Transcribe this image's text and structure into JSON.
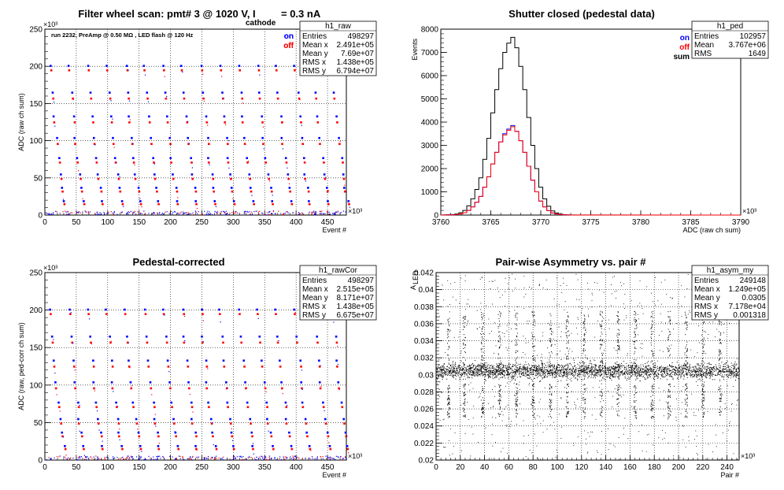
{
  "chart_data": [
    {
      "id": "raw",
      "type": "scatter",
      "title": "Filter wheel scan: pmt#  3 @  1020 V, I",
      "title_sub": "cathode",
      "title_tail": " = 0.3 nA",
      "xlabel": "Event #",
      "ylabel": "ADC (raw ch sum)",
      "x_exponent": "×10³",
      "y_exponent": "×10³",
      "xlim": [
        0,
        480
      ],
      "ylim": [
        0,
        250
      ],
      "xticks": [
        "0",
        "50",
        "100",
        "150",
        "200",
        "250",
        "300",
        "350",
        "400",
        "450"
      ],
      "yticks": [
        "0",
        "50",
        "100",
        "150",
        "200",
        "250"
      ],
      "annotation": "run 2232, PreAmp @ 0.50 MΩ , LED flash @  120 Hz",
      "legend": [
        {
          "label": "on",
          "color": "#0000ff"
        },
        {
          "label": "off",
          "color": "#ff0000"
        }
      ],
      "levels_on": [
        202,
        166,
        134,
        105,
        78,
        56,
        38,
        20
      ],
      "levels_off": [
        196,
        158,
        126,
        97,
        72,
        50,
        33,
        16
      ],
      "stats": {
        "name": "h1_raw",
        "rows": [
          {
            "k": "Entries",
            "v": "498297"
          },
          {
            "k": "Mean x",
            "v": "2.491e+05"
          },
          {
            "k": "Mean y",
            "v": "7.69e+07"
          },
          {
            "k": "RMS x",
            "v": "1.438e+05"
          },
          {
            "k": "RMS y",
            "v": "6.794e+07"
          }
        ]
      }
    },
    {
      "id": "ped",
      "type": "line",
      "title": "Shutter closed (pedestal data)",
      "xlabel": "ADC (raw ch sum)",
      "ylabel": "Events",
      "x_exponent": "×10³",
      "xlim": [
        3760,
        3790
      ],
      "ylim": [
        0,
        8000
      ],
      "xticks": [
        "3760",
        "3765",
        "3770",
        "3775",
        "3780",
        "3785",
        "3790"
      ],
      "yticks": [
        "0",
        "1000",
        "2000",
        "3000",
        "4000",
        "5000",
        "6000",
        "7000",
        "8000"
      ],
      "legend": [
        {
          "label": "on",
          "color": "#0000ff"
        },
        {
          "label": "off",
          "color": "#ff0000"
        },
        {
          "label": "sum",
          "color": "#000000"
        }
      ],
      "bin_width": 0.4,
      "series": [
        {
          "name": "sum",
          "color": "#000000",
          "x": [
            3761.2,
            3761.6,
            3762.0,
            3762.4,
            3762.8,
            3763.2,
            3763.6,
            3764.0,
            3764.4,
            3764.8,
            3765.2,
            3765.6,
            3766.0,
            3766.4,
            3766.8,
            3767.2,
            3767.6,
            3768.0,
            3768.4,
            3768.8,
            3769.2,
            3769.6,
            3770.0,
            3770.4,
            3770.8,
            3771.2,
            3771.6,
            3772.0,
            3772.4,
            3772.8,
            3773.2
          ],
          "values": [
            20,
            45,
            100,
            200,
            400,
            700,
            1100,
            1600,
            2400,
            3300,
            4400,
            5400,
            6300,
            7000,
            7400,
            7650,
            7200,
            6400,
            5400,
            4200,
            3000,
            2000,
            1200,
            700,
            380,
            180,
            90,
            40,
            15,
            8,
            3
          ]
        },
        {
          "name": "on",
          "color": "#0000ff",
          "x": [
            3761.2,
            3761.6,
            3762.0,
            3762.4,
            3762.8,
            3763.2,
            3763.6,
            3764.0,
            3764.4,
            3764.8,
            3765.2,
            3765.6,
            3766.0,
            3766.4,
            3766.8,
            3767.2,
            3767.6,
            3768.0,
            3768.4,
            3768.8,
            3769.2,
            3769.6,
            3770.0,
            3770.4,
            3770.8,
            3771.2,
            3771.6,
            3772.0,
            3772.4,
            3772.8,
            3773.2
          ],
          "values": [
            10,
            22,
            50,
            100,
            200,
            350,
            550,
            800,
            1200,
            1650,
            2200,
            2700,
            3150,
            3500,
            3700,
            3850,
            3600,
            3200,
            2700,
            2100,
            1500,
            1000,
            600,
            350,
            190,
            90,
            45,
            20,
            8,
            4,
            1
          ]
        },
        {
          "name": "off",
          "color": "#ff0000",
          "x": [
            3761.2,
            3761.6,
            3762.0,
            3762.4,
            3762.8,
            3763.2,
            3763.6,
            3764.0,
            3764.4,
            3764.8,
            3765.2,
            3765.6,
            3766.0,
            3766.4,
            3766.8,
            3767.2,
            3767.6,
            3768.0,
            3768.4,
            3768.8,
            3769.2,
            3769.6,
            3770.0,
            3770.4,
            3770.8,
            3771.2,
            3771.6,
            3772.0,
            3772.4,
            3772.8,
            3773.2
          ],
          "values": [
            10,
            23,
            50,
            100,
            200,
            350,
            550,
            800,
            1200,
            1650,
            2200,
            2700,
            3150,
            3450,
            3650,
            3800,
            3600,
            3200,
            2700,
            2100,
            1500,
            1000,
            600,
            350,
            190,
            90,
            45,
            20,
            7,
            4,
            2
          ]
        }
      ],
      "stats": {
        "name": "h1_ped",
        "rows": [
          {
            "k": "Entries",
            "v": "102957"
          },
          {
            "k": "Mean",
            "v": "3.767e+06"
          },
          {
            "k": "RMS",
            "v": "1649"
          }
        ]
      }
    },
    {
      "id": "cor",
      "type": "scatter",
      "title": "Pedestal-corrected",
      "xlabel": "Event #",
      "ylabel": "ADC (raw, ped-corr ch sum)",
      "x_exponent": "×10³",
      "y_exponent": "×10³",
      "xlim": [
        0,
        480
      ],
      "ylim": [
        0,
        250
      ],
      "xticks": [
        "0",
        "50",
        "100",
        "150",
        "200",
        "250",
        "300",
        "350",
        "400",
        "450"
      ],
      "yticks": [
        "0",
        "50",
        "100",
        "150",
        "200",
        "250"
      ],
      "legend": [
        {
          "label": "on",
          "color": "#0000ff"
        },
        {
          "label": "off",
          "color": "#ff0000"
        }
      ],
      "levels_on": [
        202,
        166,
        134,
        105,
        78,
        56,
        38,
        20
      ],
      "levels_off": [
        196,
        158,
        126,
        97,
        72,
        50,
        33,
        16
      ],
      "stats": {
        "name": "h1_rawCor",
        "rows": [
          {
            "k": "Entries",
            "v": "498297"
          },
          {
            "k": "Mean x",
            "v": "2.515e+05"
          },
          {
            "k": "Mean y",
            "v": "8.171e+07"
          },
          {
            "k": "RMS x",
            "v": "1.438e+05"
          },
          {
            "k": "RMS y",
            "v": "6.675e+07"
          }
        ]
      }
    },
    {
      "id": "asym",
      "type": "scatter",
      "title": "Pair-wise Asymmetry vs. pair #",
      "xlabel": "Pair #",
      "ylabel": "A_LED",
      "ylabel_main": "A",
      "ylabel_sub": "LED",
      "x_exponent": "×10³",
      "xlim": [
        0,
        250
      ],
      "ylim": [
        0.02,
        0.042
      ],
      "xticks": [
        "0",
        "20",
        "40",
        "60",
        "80",
        "100",
        "120",
        "140",
        "160",
        "180",
        "200",
        "220",
        "240"
      ],
      "yticks": [
        "0.02",
        "0.022",
        "0.024",
        "0.026",
        "0.028",
        "0.03",
        "0.032",
        "0.034",
        "0.036",
        "0.038",
        "0.04",
        "0.042"
      ],
      "band_center": 0.0305,
      "spike_x": [
        10,
        23,
        38,
        52,
        66,
        80,
        94,
        108,
        122,
        136,
        150,
        164,
        178,
        192,
        206,
        220,
        234
      ],
      "stats": {
        "name": "h1_asym_my",
        "rows": [
          {
            "k": "Entries",
            "v": "249148"
          },
          {
            "k": "Mean x",
            "v": "1.249e+05"
          },
          {
            "k": "Mean y",
            "v": "0.0305"
          },
          {
            "k": "RMS x",
            "v": "7.178e+04"
          },
          {
            "k": "RMS y",
            "v": "0.001318"
          }
        ]
      }
    }
  ]
}
